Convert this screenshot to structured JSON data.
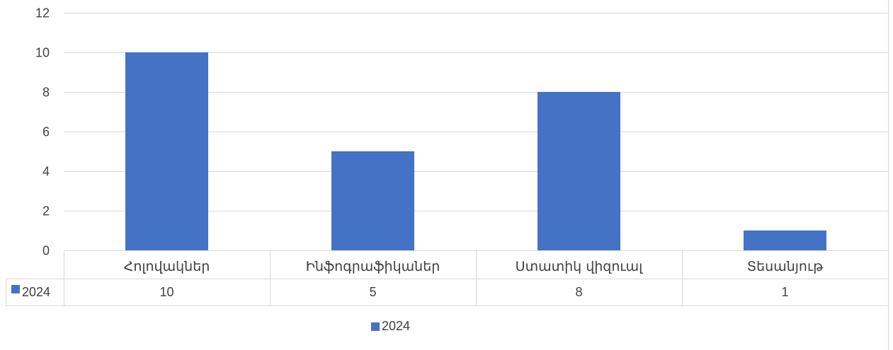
{
  "chart_data": {
    "type": "bar",
    "categories": [
      "Հոլովակներ",
      "Ինֆոգրաֆիկաներ",
      "Ստատիկ վիզուալ",
      "Տեսանյութ"
    ],
    "series": [
      {
        "name": "2024",
        "values": [
          10,
          5,
          8,
          1
        ],
        "color": "#4472C4"
      }
    ],
    "ylim": [
      0,
      12
    ],
    "yticks": [
      0,
      2,
      4,
      6,
      8,
      10,
      12
    ],
    "grid": true,
    "data_table": true,
    "legend": "bottom"
  }
}
